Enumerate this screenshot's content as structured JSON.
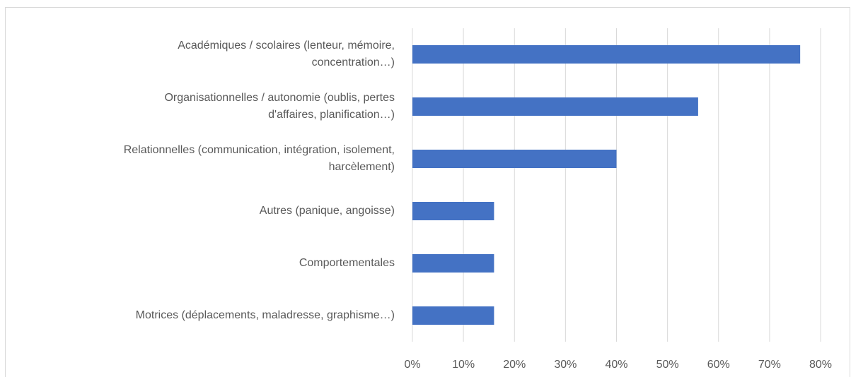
{
  "chart_data": {
    "type": "bar",
    "orientation": "horizontal",
    "categories": [
      "Académiques / scolaires (lenteur, mémoire,\nconcentration…)",
      "Organisationnelles / autonomie (oublis, pertes\nd'affaires, planification…)",
      "Relationnelles (communication, intégration, isolement,\nharcèlement)",
      "Autres (panique, angoisse)",
      "Comportementales",
      "Motrices (déplacements, maladresse, graphisme…)"
    ],
    "values": [
      76,
      56,
      40,
      16,
      16,
      16
    ],
    "color": "#4472c4",
    "xlim": [
      0,
      80
    ],
    "xticks": [
      {
        "value": 0,
        "label": "0%"
      },
      {
        "value": 10,
        "label": "10%"
      },
      {
        "value": 20,
        "label": "20%"
      },
      {
        "value": 30,
        "label": "30%"
      },
      {
        "value": 40,
        "label": "40%"
      },
      {
        "value": 50,
        "label": "50%"
      },
      {
        "value": 60,
        "label": "60%"
      },
      {
        "value": 70,
        "label": "70%"
      },
      {
        "value": 80,
        "label": "80%"
      }
    ],
    "grid": true
  }
}
